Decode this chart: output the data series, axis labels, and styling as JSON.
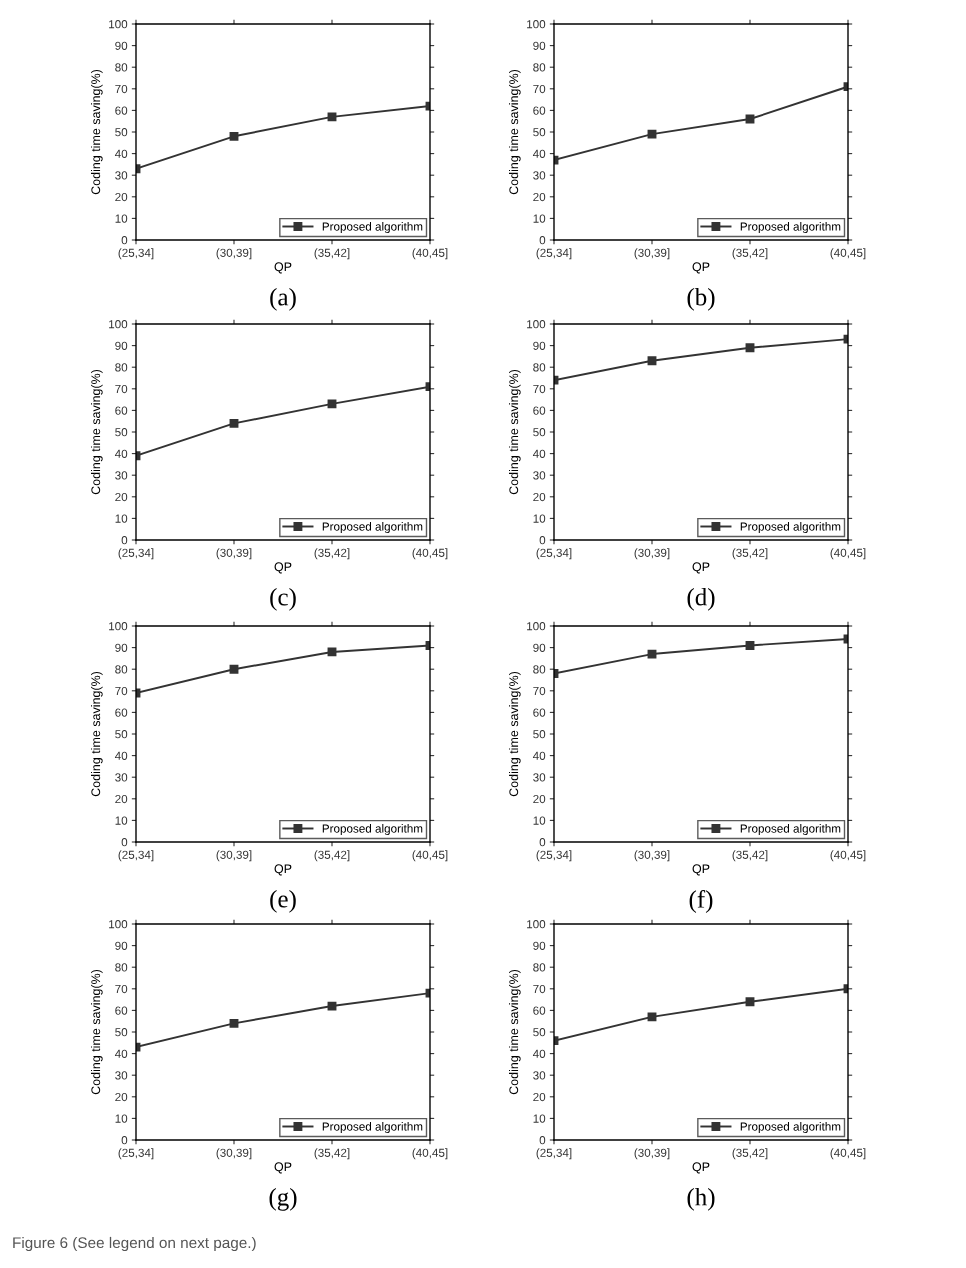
{
  "chart_data": [
    {
      "type": "line",
      "categories": [
        "(25,34]",
        "(30,39]",
        "(35,42]",
        "(40,45]"
      ],
      "xlabel": "QP",
      "ylabel": "Coding time saving(%)",
      "ylim": [
        0,
        100
      ],
      "yticks": [
        0,
        10,
        20,
        30,
        40,
        50,
        60,
        70,
        80,
        90,
        100
      ],
      "series": [
        {
          "name": "Proposed algorithm",
          "color": "#333333",
          "values": [
            33,
            48,
            57,
            62
          ]
        }
      ],
      "marker": "square",
      "legend": "bottom right",
      "grid": false,
      "annotations": [
        "(a)"
      ]
    },
    {
      "type": "line",
      "categories": [
        "(25,34]",
        "(30,39]",
        "(35,42]",
        "(40,45]"
      ],
      "xlabel": "QP",
      "ylabel": "Coding time saving(%)",
      "ylim": [
        0,
        100
      ],
      "yticks": [
        0,
        10,
        20,
        30,
        40,
        50,
        60,
        70,
        80,
        90,
        100
      ],
      "series": [
        {
          "name": "Proposed algorithm",
          "color": "#333333",
          "values": [
            37,
            49,
            56,
            71
          ]
        }
      ],
      "marker": "square",
      "legend": "bottom right",
      "grid": false,
      "annotations": [
        "(b)"
      ]
    },
    {
      "type": "line",
      "categories": [
        "(25,34]",
        "(30,39]",
        "(35,42]",
        "(40,45]"
      ],
      "xlabel": "QP",
      "ylabel": "Coding time saving(%)",
      "ylim": [
        0,
        100
      ],
      "yticks": [
        0,
        10,
        20,
        30,
        40,
        50,
        60,
        70,
        80,
        90,
        100
      ],
      "series": [
        {
          "name": "Proposed algorithm",
          "color": "#333333",
          "values": [
            39,
            54,
            63,
            71
          ]
        }
      ],
      "marker": "square",
      "legend": "bottom right",
      "grid": false,
      "annotations": [
        "(c)"
      ]
    },
    {
      "type": "line",
      "categories": [
        "(25,34]",
        "(30,39]",
        "(35,42]",
        "(40,45]"
      ],
      "xlabel": "QP",
      "ylabel": "Coding time saving(%)",
      "ylim": [
        0,
        100
      ],
      "yticks": [
        0,
        10,
        20,
        30,
        40,
        50,
        60,
        70,
        80,
        90,
        100
      ],
      "series": [
        {
          "name": "Proposed algorithm",
          "color": "#333333",
          "values": [
            74,
            83,
            89,
            93
          ]
        }
      ],
      "marker": "square",
      "legend": "bottom right",
      "grid": false,
      "annotations": [
        "(d)"
      ]
    },
    {
      "type": "line",
      "categories": [
        "(25,34]",
        "(30,39]",
        "(35,42]",
        "(40,45]"
      ],
      "xlabel": "QP",
      "ylabel": "Coding time saving(%)",
      "ylim": [
        0,
        100
      ],
      "yticks": [
        0,
        10,
        20,
        30,
        40,
        50,
        60,
        70,
        80,
        90,
        100
      ],
      "series": [
        {
          "name": "Proposed algorithm",
          "color": "#333333",
          "values": [
            69,
            80,
            88,
            91
          ]
        }
      ],
      "marker": "square",
      "legend": "bottom right",
      "grid": false,
      "annotations": [
        "(e)"
      ]
    },
    {
      "type": "line",
      "categories": [
        "(25,34]",
        "(30,39]",
        "(35,42]",
        "(40,45]"
      ],
      "xlabel": "QP",
      "ylabel": "Coding time saving(%)",
      "ylim": [
        0,
        100
      ],
      "yticks": [
        0,
        10,
        20,
        30,
        40,
        50,
        60,
        70,
        80,
        90,
        100
      ],
      "series": [
        {
          "name": "Proposed algorithm",
          "color": "#333333",
          "values": [
            78,
            87,
            91,
            94
          ]
        }
      ],
      "marker": "square",
      "legend": "bottom right",
      "grid": false,
      "annotations": [
        "(f)"
      ]
    },
    {
      "type": "line",
      "categories": [
        "(25,34]",
        "(30,39]",
        "(35,42]",
        "(40,45]"
      ],
      "xlabel": "QP",
      "ylabel": "Coding time saving(%)",
      "ylim": [
        0,
        100
      ],
      "yticks": [
        0,
        10,
        20,
        30,
        40,
        50,
        60,
        70,
        80,
        90,
        100
      ],
      "series": [
        {
          "name": "Proposed algorithm",
          "color": "#333333",
          "values": [
            43,
            54,
            62,
            68
          ]
        }
      ],
      "marker": "square",
      "legend": "bottom right",
      "grid": false,
      "annotations": [
        "(g)"
      ]
    },
    {
      "type": "line",
      "categories": [
        "(25,34]",
        "(30,39]",
        "(35,42]",
        "(40,45]"
      ],
      "xlabel": "QP",
      "ylabel": "Coding time saving(%)",
      "ylim": [
        0,
        100
      ],
      "yticks": [
        0,
        10,
        20,
        30,
        40,
        50,
        60,
        70,
        80,
        90,
        100
      ],
      "series": [
        {
          "name": "Proposed algorithm",
          "color": "#333333",
          "values": [
            46,
            57,
            64,
            70
          ]
        }
      ],
      "marker": "square",
      "legend": "bottom right",
      "grid": false,
      "annotations": [
        "(h)",
        "Figure 6 (See legend on next page.)"
      ]
    }
  ]
}
